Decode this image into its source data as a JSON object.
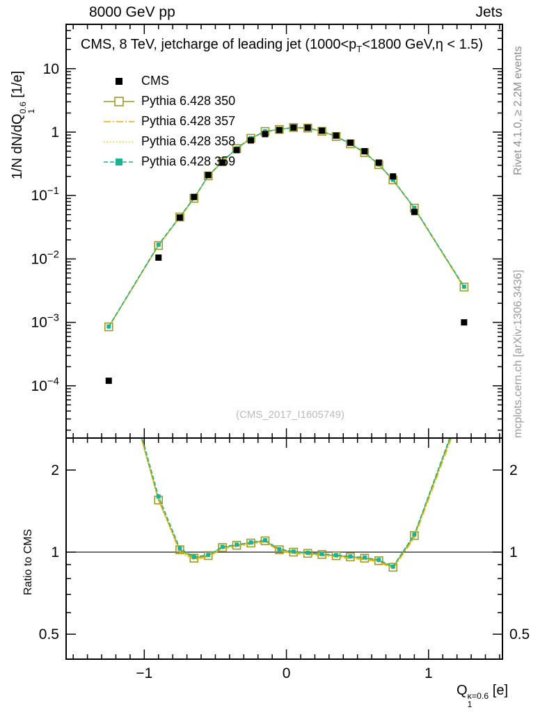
{
  "page": {
    "header_left": "8000 GeV pp",
    "header_right": "Jets",
    "title_parts": [
      {
        "t": "text",
        "s": "CMS, 8 TeV, jetcharge of leading jet (1000<p"
      },
      {
        "t": "sub",
        "s": "T"
      },
      {
        "t": "text",
        "s": "<1800 GeV,η < 1.5)"
      }
    ],
    "watermark": "(CMS_2017_I1605749)",
    "right_note_top": "Rivet 4.1.0, ≥ 2.2M events",
    "right_note_bottom": "mcplots.cern.ch [arXiv:1306.3436]"
  },
  "axes": {
    "ylabel_parts": [
      {
        "t": "text",
        "s": "1/N dN/dQ"
      },
      {
        "t": "stack",
        "sup": "0.6",
        "sub": "1"
      },
      {
        "t": "text",
        "s": " [1/e]"
      }
    ],
    "ratio_ylabel": "Ratio to CMS",
    "xlabel_parts": [
      {
        "t": "text",
        "s": "Q"
      },
      {
        "t": "stack",
        "sup": "κ=0.6",
        "sub": "1"
      },
      {
        "t": "text",
        "s": " [e]"
      }
    ],
    "x_ticks": [
      {
        "v": -1,
        "label": "−1"
      },
      {
        "v": 0,
        "label": "0"
      },
      {
        "v": 1,
        "label": "1"
      }
    ],
    "y_ticks": [
      {
        "v": 10,
        "base": "10",
        "exp": ""
      },
      {
        "v": 1,
        "base": "1",
        "exp": ""
      },
      {
        "v": 0.1,
        "base": "10",
        "exp": "−1"
      },
      {
        "v": 0.01,
        "base": "10",
        "exp": "−2"
      },
      {
        "v": 0.001,
        "base": "10",
        "exp": "−3"
      },
      {
        "v": 0.0001,
        "base": "10",
        "exp": "−4"
      }
    ],
    "ratio_ticks": [
      {
        "v": 2,
        "label": "2"
      },
      {
        "v": 1,
        "label": "1"
      },
      {
        "v": 0.5,
        "label": "0.5"
      }
    ]
  },
  "chart_data": {
    "type": "line",
    "title": "CMS, 8 TeV, jetcharge of leading jet (1000<pT<1800 GeV, η < 1.5)",
    "xlabel": "Q1 κ=0.6 [e]",
    "ylabel": "1/N dN/dQ1 0.6 [1/e]",
    "ratio_label": "Ratio to CMS",
    "y_scale": "log",
    "ratio_scale": "log",
    "grid": false,
    "legend_position": "top-left-inside",
    "xlim": [
      -1.55,
      1.52
    ],
    "ylim": [
      1.5e-05,
      50
    ],
    "ratio_ylim": [
      0.405,
      2.62
    ],
    "x": [
      -1.25,
      -0.9,
      -0.75,
      -0.65,
      -0.55,
      -0.45,
      -0.35,
      -0.25,
      -0.15,
      -0.05,
      0.05,
      0.15,
      0.25,
      0.35,
      0.45,
      0.55,
      0.65,
      0.75,
      0.9,
      1.25
    ],
    "series": [
      {
        "name": "CMS",
        "color": "#000000",
        "line": "none",
        "marker": "square-filled",
        "marker_size": 9,
        "values": [
          0.00012,
          0.0105,
          0.045,
          0.095,
          0.21,
          0.33,
          0.52,
          0.74,
          0.93,
          1.08,
          1.18,
          1.17,
          1.05,
          0.88,
          0.68,
          0.5,
          0.33,
          0.2,
          0.055,
          0.001
        ]
      },
      {
        "name": "Pythia 6.428 350",
        "color": "#9d9a22",
        "line": "solid",
        "marker": "square-open",
        "marker_size": 11,
        "values": [
          0.00085,
          0.0163,
          0.0459,
          0.0903,
          0.204,
          0.343,
          0.551,
          0.799,
          1.023,
          1.102,
          1.18,
          1.158,
          1.029,
          0.854,
          0.653,
          0.475,
          0.307,
          0.176,
          0.0633,
          0.0036
        ]
      },
      {
        "name": "Pythia 6.428 357",
        "color": "#f2a900",
        "line": "dashdot",
        "marker": "none",
        "marker_size": 0,
        "values": [
          0.00084,
          0.0165,
          0.045,
          0.0893,
          0.202,
          0.34,
          0.546,
          0.792,
          1.014,
          1.091,
          1.168,
          1.147,
          1.019,
          0.845,
          0.646,
          0.47,
          0.304,
          0.174,
          0.0622,
          0.0035
        ]
      },
      {
        "name": "Pythia 6.428 358",
        "color": "#ddd000",
        "line": "dotted",
        "marker": "none",
        "marker_size": 0,
        "values": [
          0.00085,
          0.0164,
          0.0455,
          0.0898,
          0.203,
          0.342,
          0.549,
          0.796,
          1.018,
          1.096,
          1.174,
          1.152,
          1.024,
          0.849,
          0.649,
          0.473,
          0.305,
          0.175,
          0.0627,
          0.00355
        ]
      },
      {
        "name": "Pythia 6.428 359",
        "color": "#17b394",
        "line": "dashed",
        "marker": "square-filled",
        "marker_size": 6,
        "values": [
          0.00086,
          0.0168,
          0.0464,
          0.0912,
          0.205,
          0.345,
          0.554,
          0.803,
          1.028,
          1.107,
          1.186,
          1.164,
          1.034,
          0.858,
          0.656,
          0.478,
          0.309,
          0.177,
          0.0638,
          0.00365
        ]
      }
    ],
    "ratio_note": "ratio panel shows each Pythia series divided by CMS; reference line at 1"
  }
}
